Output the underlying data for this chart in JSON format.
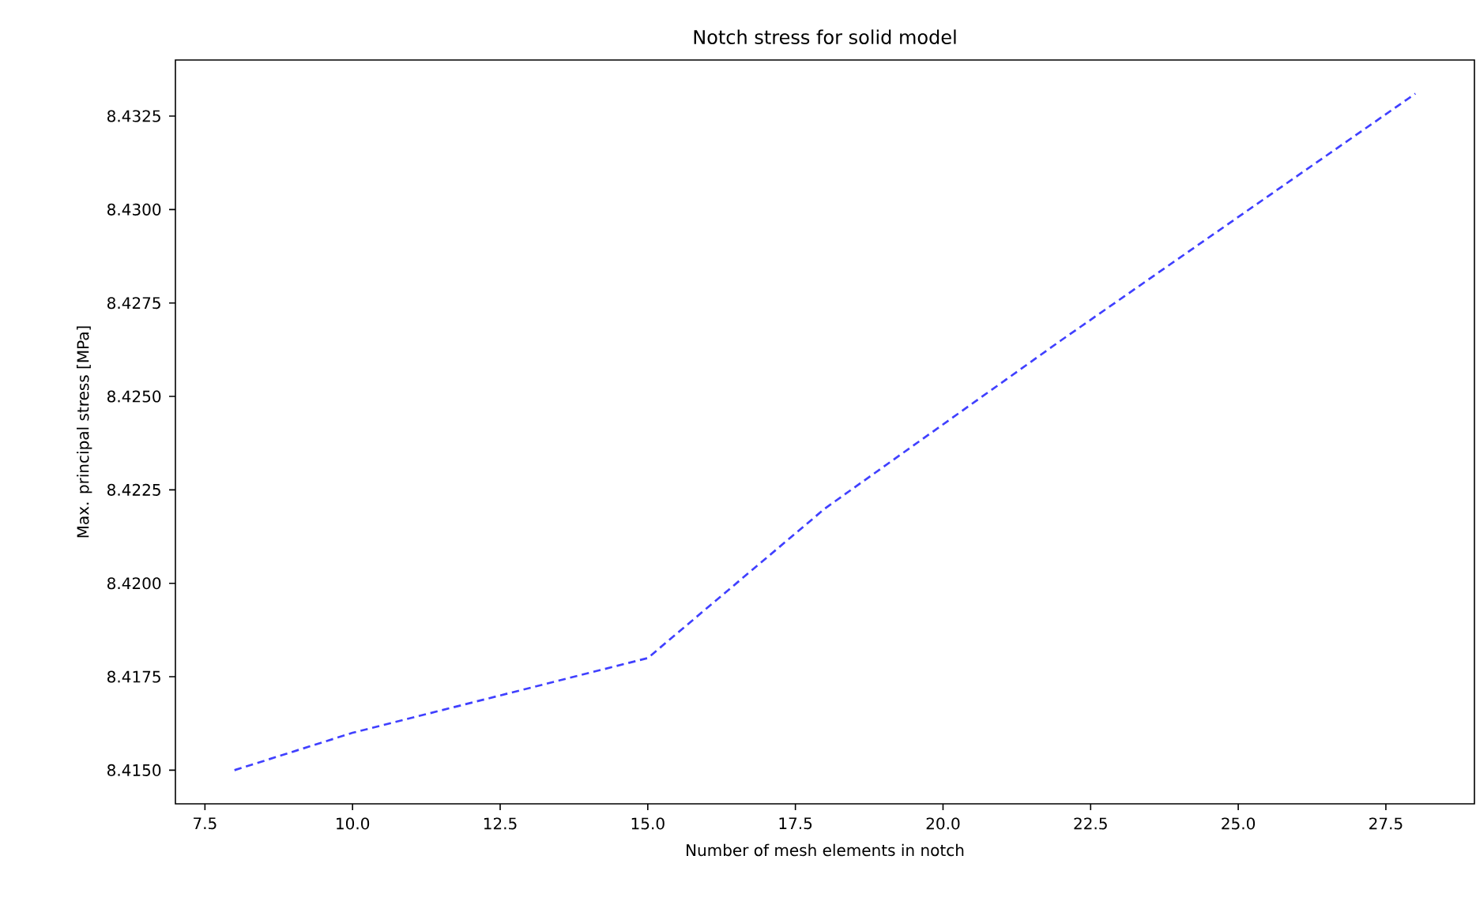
{
  "chart_data": {
    "type": "line",
    "title": "Notch stress for solid model",
    "xlabel": "Number of mesh elements in notch",
    "ylabel": "Max. principal stress [MPa]",
    "x": [
      8,
      10,
      15,
      18,
      22,
      28
    ],
    "series": [
      {
        "color": "#4040ff",
        "values": [
          8.415,
          8.416,
          8.418,
          8.422,
          8.4265,
          8.4331
        ]
      }
    ],
    "line_style": "dashed",
    "marker": "none",
    "grid": false,
    "xlim": [
      7,
      29
    ],
    "ylim": [
      8.4141,
      8.434
    ],
    "xticks": [
      {
        "value": 7.5,
        "label": "7.5"
      },
      {
        "value": 10,
        "label": "10.0"
      },
      {
        "value": 12.5,
        "label": "12.5"
      },
      {
        "value": 15,
        "label": "15.0"
      },
      {
        "value": 17.5,
        "label": "17.5"
      },
      {
        "value": 20,
        "label": "20.0"
      },
      {
        "value": 22.5,
        "label": "22.5"
      },
      {
        "value": 25,
        "label": "25.0"
      },
      {
        "value": 27.5,
        "label": "27.5"
      }
    ],
    "yticks": [
      {
        "value": 8.415,
        "label": "8.4150"
      },
      {
        "value": 8.4175,
        "label": "8.4175"
      },
      {
        "value": 8.42,
        "label": "8.4200"
      },
      {
        "value": 8.4225,
        "label": "8.4225"
      },
      {
        "value": 8.425,
        "label": "8.4250"
      },
      {
        "value": 8.4275,
        "label": "8.4275"
      },
      {
        "value": 8.43,
        "label": "8.4300"
      },
      {
        "value": 8.4325,
        "label": "8.4325"
      }
    ]
  }
}
